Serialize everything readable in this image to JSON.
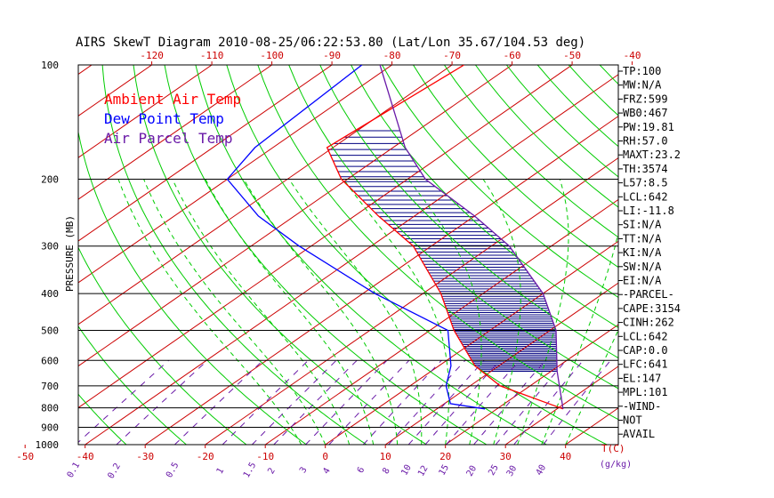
{
  "chart_data": {
    "type": "line",
    "title": "AIRS SkewT Diagram 2010-08-25/06:22:53.80 (Lat/Lon 35.67/104.53 deg)",
    "ylabel": "PRESSURE (MB)",
    "y_scale": "log",
    "ylim": [
      1000,
      100
    ],
    "pressure_ticks": [
      100,
      200,
      300,
      400,
      500,
      600,
      700,
      800,
      900,
      1000
    ],
    "top_temp_ticks": [
      "-120",
      "-110",
      "-100",
      "-90",
      "-80",
      "-70",
      "-60",
      "-50",
      "-40"
    ],
    "bottom_temp_ticks": [
      "-50",
      "-40",
      "-30",
      "-20",
      "-10",
      "0",
      "10",
      "20",
      "30",
      "40"
    ],
    "bottom_axis_label": "T(C)",
    "mixing_ratio_ticks": [
      "0.1",
      "0.2",
      "0.5",
      "1",
      "1.5",
      "2",
      "3",
      "4",
      "6",
      "8",
      "10",
      "12",
      "15",
      "20",
      "25",
      "30",
      "40"
    ],
    "mixing_ratio_unit": "(g/kg)",
    "legend": [
      {
        "label": "Ambient Air Temp",
        "color": "#ff0000"
      },
      {
        "label": "Dew Point Temp",
        "color": "#0000ff"
      },
      {
        "label": "Air Parcel Temp",
        "color": "#6a1aa8"
      }
    ],
    "series": [
      {
        "name": "Ambient Air Temp",
        "color": "#ff0000",
        "points": [
          [
            805,
            31
          ],
          [
            700,
            15
          ],
          [
            620,
            6
          ],
          [
            500,
            -6
          ],
          [
            400,
            -17
          ],
          [
            300,
            -33
          ],
          [
            250,
            -46
          ],
          [
            200,
            -61
          ],
          [
            165,
            -71
          ],
          [
            100,
            -68
          ]
        ]
      },
      {
        "name": "Dew Point Temp",
        "color": "#0000ff",
        "points": [
          [
            805,
            18
          ],
          [
            780,
            11
          ],
          [
            700,
            6
          ],
          [
            620,
            2
          ],
          [
            500,
            -7
          ],
          [
            400,
            -28
          ],
          [
            300,
            -52
          ],
          [
            250,
            -66
          ],
          [
            200,
            -80
          ],
          [
            165,
            -83
          ],
          [
            100,
            -85
          ]
        ]
      },
      {
        "name": "Air Parcel Temp",
        "color": "#6a1aa8",
        "points": [
          [
            805,
            31
          ],
          [
            641,
            21
          ],
          [
            500,
            11
          ],
          [
            400,
            0
          ],
          [
            300,
            -17
          ],
          [
            250,
            -30
          ],
          [
            200,
            -47
          ],
          [
            165,
            -58
          ],
          [
            100,
            -82
          ]
        ]
      }
    ],
    "cape_shading": {
      "from_hpa": 641,
      "to_hpa": 147,
      "color": "#000080"
    },
    "grid_colors": {
      "isotherm": "#cc0000",
      "dry_adiabat": "#00cc00",
      "moist_adiabat": "#00cc00",
      "mixing_ratio": "#6a1aa8",
      "isobar": "#000000"
    }
  },
  "side_panel": [
    "TP:100",
    "MW:N/A",
    "FRZ:599",
    "WB0:467",
    "PW:19.81",
    "RH:57.0",
    "MAXT:23.2",
    "TH:3574",
    "L57:8.5",
    "LCL:642",
    "LI:-11.8",
    "SI:N/A",
    "TT:N/A",
    "KI:N/A",
    "SW:N/A",
    "EI:N/A",
    "-PARCEL-",
    "CAPE:3154",
    "CINH:262",
    "LCL:642",
    "CAP:0.0",
    "LFC:641",
    "EL:147",
    "MPL:101",
    "-WIND-",
    "NOT",
    "AVAIL"
  ]
}
